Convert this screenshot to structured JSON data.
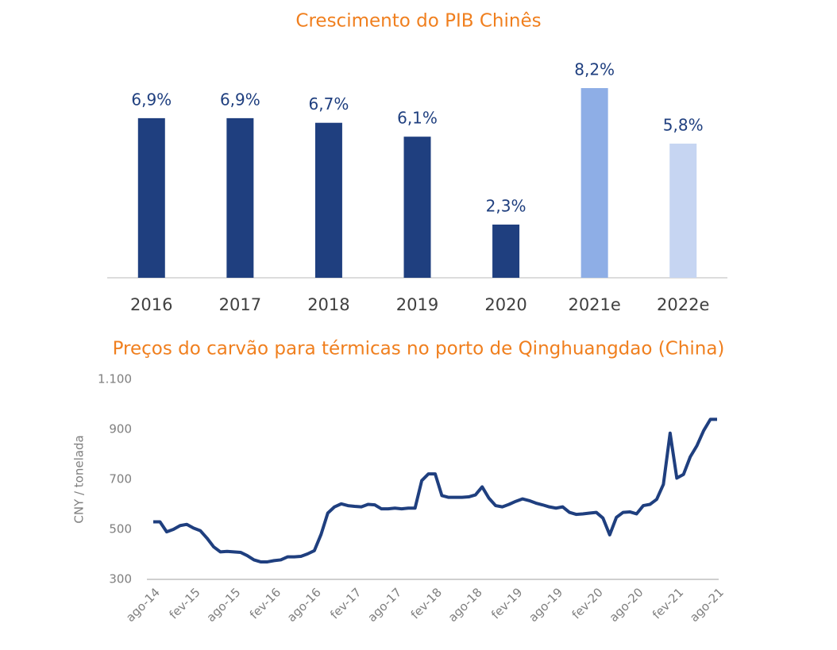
{
  "chart_data": [
    {
      "type": "bar",
      "title": "Crescimento do PIB Chinês",
      "categories": [
        "2016",
        "2017",
        "2018",
        "2019",
        "2020",
        "2021e",
        "2022e"
      ],
      "values": [
        6.9,
        6.9,
        6.7,
        6.1,
        2.3,
        8.2,
        5.8
      ],
      "value_labels": [
        "6,9%",
        "6,9%",
        "6,7%",
        "6,1%",
        "2,3%",
        "8,2%",
        "5,8%"
      ],
      "colors": [
        "#1f3f7f",
        "#1f3f7f",
        "#1f3f7f",
        "#1f3f7f",
        "#1f3f7f",
        "#8eaee6",
        "#c6d5f2"
      ]
    },
    {
      "type": "line",
      "title": "Preços do carvão para térmicas no porto de Qinghuangdao (China)",
      "y_label": "CNY / tonelada",
      "categories": [
        "ago-14",
        null,
        null,
        null,
        null,
        null,
        "fev-15",
        null,
        null,
        null,
        null,
        null,
        "ago-15",
        null,
        null,
        null,
        null,
        null,
        "fev-16",
        null,
        null,
        null,
        null,
        null,
        "ago-16",
        null,
        null,
        null,
        null,
        null,
        "fev-17",
        null,
        null,
        null,
        null,
        null,
        "ago-17",
        null,
        null,
        null,
        null,
        null,
        "fev-18",
        null,
        null,
        null,
        null,
        null,
        "ago-18",
        null,
        null,
        null,
        null,
        null,
        "fev-19",
        null,
        null,
        null,
        null,
        null,
        "ago-19",
        null,
        null,
        null,
        null,
        null,
        "fev-20",
        null,
        null,
        null,
        null,
        null,
        "ago-20",
        null,
        null,
        null,
        null,
        null,
        "fev-21",
        null,
        null,
        null,
        null,
        null,
        "ago-21"
      ],
      "series": [
        {
          "color": "#1f3f7f",
          "values": [
            530,
            530,
            490,
            500,
            515,
            520,
            505,
            495,
            465,
            430,
            410,
            412,
            410,
            408,
            395,
            378,
            370,
            370,
            375,
            378,
            390,
            390,
            392,
            402,
            415,
            480,
            565,
            590,
            602,
            595,
            592,
            590,
            600,
            598,
            582,
            582,
            585,
            582,
            585,
            585,
            695,
            722,
            722,
            635,
            628,
            628,
            628,
            630,
            638,
            670,
            625,
            595,
            590,
            600,
            612,
            622,
            615,
            605,
            598,
            590,
            585,
            590,
            568,
            560,
            562,
            565,
            568,
            545,
            478,
            548,
            568,
            570,
            562,
            595,
            600,
            620,
            680,
            885,
            705,
            720,
            790,
            835,
            895,
            940,
            940
          ]
        }
      ],
      "ylim": [
        300,
        1100
      ],
      "yticks": [
        300,
        500,
        700,
        900,
        {
          "value": 1100,
          "label": "1.100"
        }
      ]
    }
  ]
}
